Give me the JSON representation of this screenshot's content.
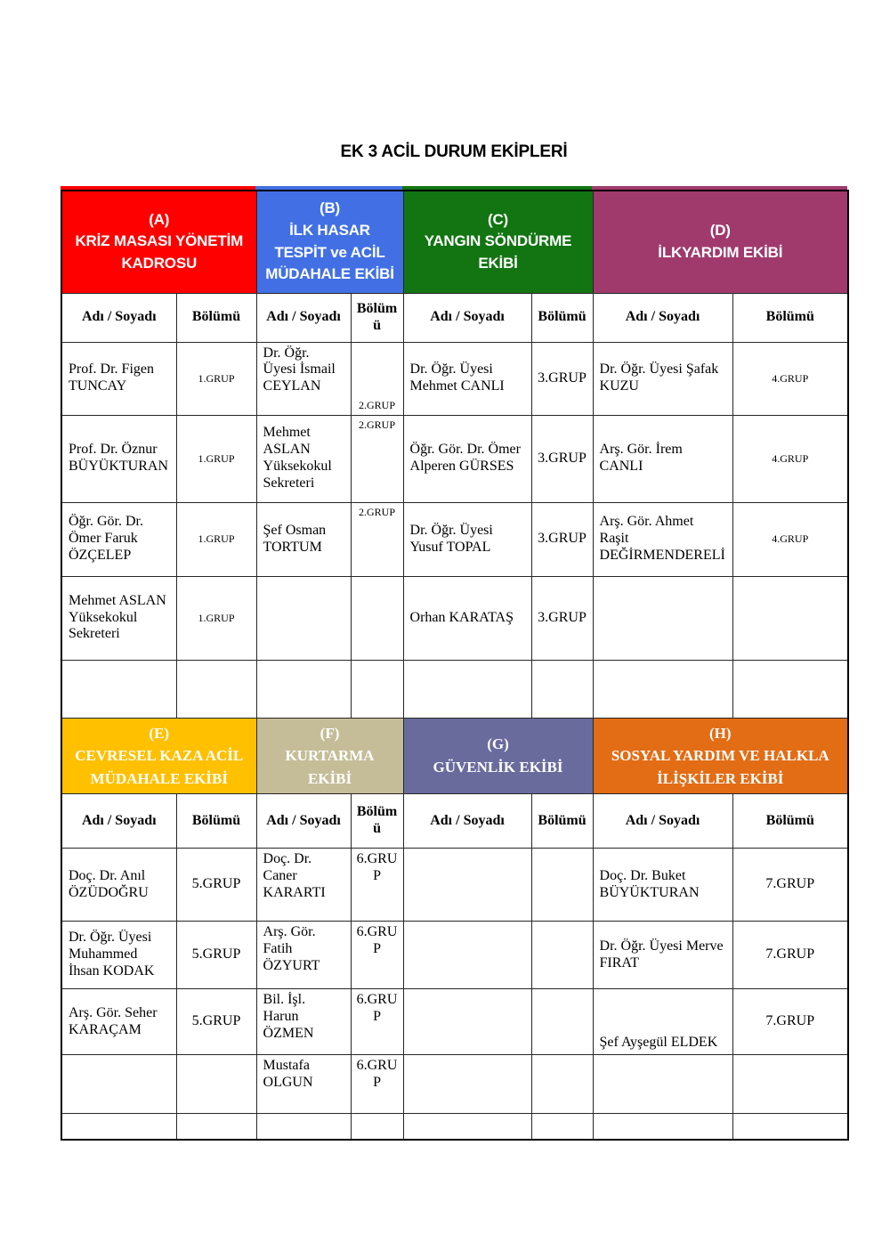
{
  "page": {
    "title": "EK 3 ACİL DURUM EKİPLERİ"
  },
  "columns": {
    "name_header": "Adı / Soyadı",
    "dept_header": "Bölümü"
  },
  "sections": [
    {
      "teams": [
        {
          "code": "(A)",
          "name": "KRİZ MASASI YÖNETİM KADROSU",
          "color": "#FF0000"
        },
        {
          "code": "(B)",
          "name": "İLK HASAR TESPİT ve ACİL MÜDAHALE EKİBİ",
          "color": "#4270E4"
        },
        {
          "code": "(C)",
          "name": "YANGIN SÖNDÜRME EKİBİ",
          "color": "#127512"
        },
        {
          "code": "(D)",
          "name": "İLKYARDIM EKİBİ",
          "color": "#A03A6D"
        }
      ],
      "rows": [
        [
          "Prof. Dr. Figen TUNCAY",
          "1.GRUP",
          "Dr. Öğr. Üyesi İsmail CEYLAN",
          "2.GRUP",
          "Dr. Öğr. Üyesi Mehmet CANLI",
          "3.GRUP",
          "Dr. Öğr. Üyesi Şafak KUZU",
          "4.GRUP"
        ],
        [
          "Prof. Dr. Öznur BÜYÜKTURAN",
          "1.GRUP",
          "Mehmet ASLAN Yüksekokul Sekreteri",
          "2.GRUP",
          "Öğr. Gör. Dr. Ömer Alperen GÜRSES",
          "3.GRUP",
          "Arş. Gör. İrem CANLI",
          "4.GRUP"
        ],
        [
          "Öğr. Gör. Dr. Ömer Faruk ÖZÇELEP",
          "1.GRUP",
          "Şef Osman TORTUM",
          "2.GRUP",
          "Dr. Öğr. Üyesi Yusuf TOPAL",
          "3.GRUP",
          "Arş. Gör. Ahmet Raşit DEĞİRMENDERELİ",
          "4.GRUP"
        ],
        [
          "Mehmet ASLAN Yüksekokul Sekreteri",
          "1.GRUP",
          "",
          "",
          "Orhan KARATAŞ",
          "3.GRUP",
          "",
          ""
        ],
        [
          "",
          "",
          "",
          "",
          "",
          "",
          "",
          ""
        ]
      ]
    },
    {
      "teams": [
        {
          "code": "(E)",
          "name": "CEVRESEL KAZA ACİL MÜDAHALE EKİBİ",
          "color": "#FFC000"
        },
        {
          "code": "(F)",
          "name": "KURTARMA EKİBİ",
          "color": "#C4BD97"
        },
        {
          "code": "(G)",
          "name": "GÜVENLİK EKİBİ",
          "color": "#6A6B9D"
        },
        {
          "code": "(H)",
          "name": "SOSYAL YARDIM VE HALKLA İLİŞKİLER EKİBİ",
          "color": "#E26D15"
        }
      ],
      "rows": [
        [
          "Doç. Dr. Anıl ÖZÜDOĞRU",
          "5.GRUP",
          "Doç. Dr. Caner KARARTI",
          "6.GRUP",
          "",
          "",
          "Doç. Dr. Buket BÜYÜKTURAN",
          "7.GRUP"
        ],
        [
          "Dr. Öğr. Üyesi Muhammed İhsan KODAK",
          "5.GRUP",
          "Arş. Gör. Fatih ÖZYURT",
          "6.GRUP",
          "",
          "",
          "Dr. Öğr. Üyesi Merve FIRAT",
          "7.GRUP"
        ],
        [
          "Arş. Gör. Seher KARAÇAM",
          "5.GRUP",
          "Bil. İşl. Harun ÖZMEN",
          "6.GRUP",
          "",
          "",
          "Şef Ayşegül ELDEK",
          "7.GRUP"
        ],
        [
          "",
          "",
          "Mustafa OLGUN",
          "6.GRUP",
          "",
          "",
          "",
          ""
        ],
        [
          "",
          "",
          "",
          "",
          "",
          "",
          "",
          ""
        ]
      ]
    }
  ]
}
